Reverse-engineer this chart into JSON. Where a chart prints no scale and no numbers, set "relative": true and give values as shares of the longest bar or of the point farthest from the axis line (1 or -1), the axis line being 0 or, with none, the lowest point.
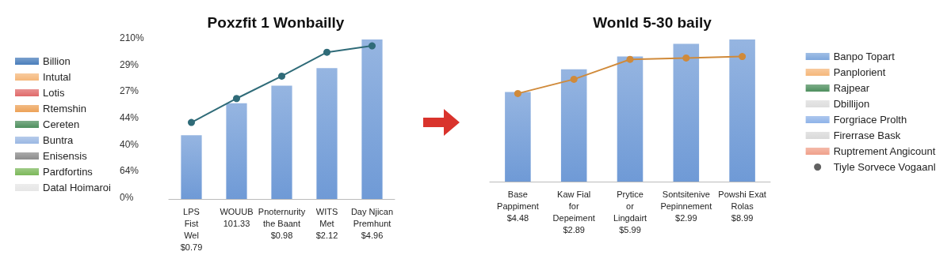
{
  "chart_data": [
    {
      "type": "bar",
      "title": "Poxzfit 1 Wonbailly",
      "categories": [
        "LPS\nFist\nWel\n$0.79",
        "WOUUB\n101.33",
        "Pnoternurity\nthe Baant\n$0.98",
        "WITS\nMet\n$2.12",
        "Day Njican\nPremhunt\n$4.96"
      ],
      "relative": true,
      "annotations": [
        "210%",
        "29%",
        "27%",
        "44%",
        "40%",
        "64%",
        "0%"
      ],
      "legend": "left",
      "series": [
        {
          "color": "#6f9ad6",
          "values": [
            0.4,
            0.6,
            0.71,
            0.82,
            1
          ]
        },
        {
          "type": "line",
          "marker": "circle",
          "color": "#2f6b78",
          "values": [
            0.48,
            0.63,
            0.77,
            0.92,
            0.96
          ]
        },
        {
          "name": "Billion",
          "color": "#4a7ebb",
          "values": [
            null,
            null,
            null,
            null,
            null
          ]
        },
        {
          "name": "Intutal",
          "color": "#f5b77a",
          "values": [
            null,
            null,
            null,
            null,
            null
          ]
        },
        {
          "name": "Lotis",
          "color": "#e06a6a",
          "values": [
            null,
            null,
            null,
            null,
            null
          ]
        },
        {
          "name": "Rtemshin",
          "color": "#eda258",
          "values": [
            null,
            null,
            null,
            null,
            null
          ]
        },
        {
          "name": "Cereten",
          "color": "#4e8f5e",
          "values": [
            null,
            null,
            null,
            null,
            null
          ]
        },
        {
          "name": "Buntra",
          "color": "#9bb8e3",
          "values": [
            null,
            null,
            null,
            null,
            null
          ]
        },
        {
          "name": "Enisensis",
          "color": "#8c8c8c",
          "values": [
            null,
            null,
            null,
            null,
            null
          ]
        },
        {
          "name": "Pardfortins",
          "color": "#7cb85a",
          "values": [
            null,
            null,
            null,
            null,
            null
          ]
        },
        {
          "name": "Datal Hoimaroi",
          "color": "#e6e6e6",
          "values": [
            null,
            null,
            null,
            null,
            null
          ]
        }
      ]
    },
    {
      "type": "bar",
      "title": "Wonld 5-30 baily",
      "relative": true,
      "categories": [
        "Base\nPappiment\n$4.48",
        "Kaw Fial\nfor\nDepeiment\n$2.89",
        "Prytice\nor\nLingdairt\n$5.99",
        "Sontsitenive\nPepinnement\n$2.99",
        "Powshi Exat\nRolas\n$8.99"
      ],
      "legend": "right",
      "series": [
        {
          "color": "#6f9ad6",
          "values": [
            0.63,
            0.79,
            0.88,
            0.97,
            1
          ]
        },
        {
          "type": "line",
          "marker": "circle",
          "color": "#d08a3a",
          "values": [
            0.62,
            0.72,
            0.86,
            0.87,
            0.88
          ]
        },
        {
          "name": "Banpo Topart",
          "color": "#7ea7dc",
          "values": [
            null,
            null,
            null,
            null,
            null
          ]
        },
        {
          "name": "Panplorient",
          "color": "#f5b77a",
          "values": [
            null,
            null,
            null,
            null,
            null
          ]
        },
        {
          "name": "Rajpear",
          "color": "#4e8f5e",
          "values": [
            null,
            null,
            null,
            null,
            null
          ]
        },
        {
          "name": "Dbillijon",
          "color": "#dddddd",
          "values": [
            null,
            null,
            null,
            null,
            null
          ]
        },
        {
          "name": "Forgriace Prolth",
          "color": "#8fb3e8",
          "values": [
            null,
            null,
            null,
            null,
            null
          ]
        },
        {
          "name": "Firerrase Bask",
          "color": "#d9d9d9",
          "values": [
            null,
            null,
            null,
            null,
            null
          ]
        },
        {
          "name": "Ruptrement Angicount",
          "color": "#f0a08a",
          "values": [
            null,
            null,
            null,
            null,
            null
          ]
        },
        {
          "name": "Tiyle Sorvece Vogaanl",
          "type": "scatter",
          "marker": "circle",
          "color": "#3a3a3a",
          "values": [
            null,
            null,
            null,
            null,
            null
          ]
        }
      ]
    }
  ]
}
